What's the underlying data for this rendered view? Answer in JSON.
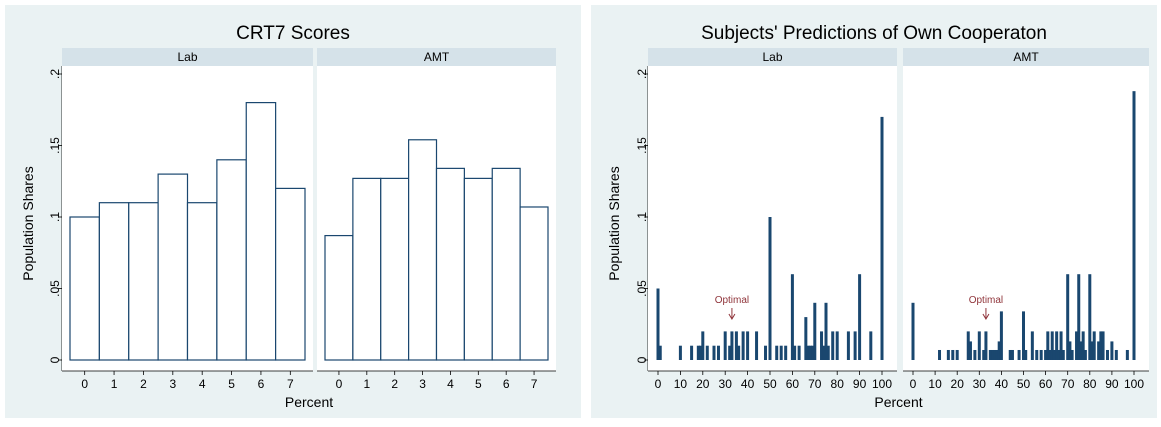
{
  "figures": [
    {
      "title": "CRT7 Scores",
      "ylabel": "Population Shares",
      "xlabel": "Percent",
      "panels": [
        "Lab",
        "AMT"
      ]
    },
    {
      "title": "Subjects' Predictions of Own Cooperaton",
      "ylabel": "Population Shares",
      "xlabel": "Percent",
      "panels": [
        "Lab",
        "AMT"
      ],
      "annotation": "Optimal"
    }
  ],
  "colors": {
    "outer_bg": "#eaf2f3",
    "plot_bg": "#ffffff",
    "strip_bg": "#d5e2e9",
    "bar_outline": "#1a476f",
    "bar_fill_solid": "#1a476f",
    "annotation": "#90353b",
    "text": "#000000"
  },
  "chart_data": [
    {
      "type": "bar",
      "title": "CRT7 Scores",
      "xlabel": "Percent",
      "ylabel": "Population Shares",
      "ylim": [
        0,
        0.2
      ],
      "yticks": [
        0,
        0.05,
        0.1,
        0.15,
        0.2
      ],
      "ytick_labels": [
        "0",
        ".05",
        ".1",
        ".15",
        ".2"
      ],
      "xticks": [
        0,
        1,
        2,
        3,
        4,
        5,
        6,
        7
      ],
      "xtick_labels": [
        "0",
        "1",
        "2",
        "3",
        "4",
        "5",
        "6",
        "7"
      ],
      "categories": [
        0,
        1,
        2,
        3,
        4,
        5,
        6,
        7
      ],
      "series": [
        {
          "name": "Lab",
          "values": [
            0.1,
            0.11,
            0.11,
            0.13,
            0.11,
            0.14,
            0.18,
            0.12
          ]
        },
        {
          "name": "AMT",
          "values": [
            0.087,
            0.127,
            0.127,
            0.154,
            0.134,
            0.127,
            0.134,
            0.107
          ]
        }
      ],
      "grid": false,
      "legend": "none"
    },
    {
      "type": "bar",
      "title": "Subjects' Predictions of Own Cooperaton",
      "xlabel": "Percent",
      "ylabel": "Population Shares",
      "ylim": [
        0,
        0.2
      ],
      "yticks": [
        0,
        0.05,
        0.1,
        0.15,
        0.2
      ],
      "ytick_labels": [
        "0",
        ".05",
        ".1",
        ".15",
        ".2"
      ],
      "xticks": [
        0,
        10,
        20,
        30,
        40,
        50,
        60,
        70,
        80,
        90,
        100
      ],
      "xtick_labels": [
        "0",
        "10",
        "20",
        "30",
        "40",
        "50",
        "60",
        "70",
        "80",
        "90",
        "100"
      ],
      "annotation": {
        "text": "Optimal",
        "x": 33
      },
      "series": [
        {
          "name": "Lab",
          "points": [
            [
              0,
              0.05
            ],
            [
              1,
              0.01
            ],
            [
              10,
              0.01
            ],
            [
              15,
              0.01
            ],
            [
              18,
              0.01
            ],
            [
              19,
              0.01
            ],
            [
              20,
              0.02
            ],
            [
              22,
              0.01
            ],
            [
              25,
              0.01
            ],
            [
              27,
              0.01
            ],
            [
              30,
              0.02
            ],
            [
              32,
              0.01
            ],
            [
              33,
              0.02
            ],
            [
              35,
              0.02
            ],
            [
              36,
              0.01
            ],
            [
              38,
              0.02
            ],
            [
              40,
              0.02
            ],
            [
              44,
              0.02
            ],
            [
              48,
              0.01
            ],
            [
              50,
              0.1
            ],
            [
              53,
              0.01
            ],
            [
              55,
              0.01
            ],
            [
              57,
              0.01
            ],
            [
              60,
              0.06
            ],
            [
              61,
              0.01
            ],
            [
              63,
              0.01
            ],
            [
              66,
              0.03
            ],
            [
              67,
              0.01
            ],
            [
              68,
              0.01
            ],
            [
              69,
              0.01
            ],
            [
              70,
              0.04
            ],
            [
              73,
              0.02
            ],
            [
              74,
              0.01
            ],
            [
              75,
              0.04
            ],
            [
              76,
              0.01
            ],
            [
              78,
              0.02
            ],
            [
              80,
              0.02
            ],
            [
              85,
              0.02
            ],
            [
              88,
              0.02
            ],
            [
              90,
              0.06
            ],
            [
              95,
              0.02
            ],
            [
              100,
              0.17
            ]
          ]
        },
        {
          "name": "AMT",
          "points": [
            [
              0,
              0.04
            ],
            [
              12,
              0.007
            ],
            [
              16,
              0.007
            ],
            [
              18,
              0.007
            ],
            [
              20,
              0.007
            ],
            [
              25,
              0.02
            ],
            [
              26,
              0.013
            ],
            [
              28,
              0.007
            ],
            [
              30,
              0.02
            ],
            [
              32,
              0.007
            ],
            [
              33,
              0.02
            ],
            [
              35,
              0.007
            ],
            [
              36,
              0.007
            ],
            [
              37,
              0.007
            ],
            [
              38,
              0.007
            ],
            [
              39,
              0.013
            ],
            [
              40,
              0.034
            ],
            [
              44,
              0.007
            ],
            [
              45,
              0.007
            ],
            [
              48,
              0.007
            ],
            [
              50,
              0.034
            ],
            [
              51,
              0.007
            ],
            [
              54,
              0.02
            ],
            [
              56,
              0.007
            ],
            [
              58,
              0.007
            ],
            [
              60,
              0.007
            ],
            [
              61,
              0.02
            ],
            [
              62,
              0.007
            ],
            [
              63,
              0.02
            ],
            [
              64,
              0.007
            ],
            [
              65,
              0.02
            ],
            [
              66,
              0.007
            ],
            [
              67,
              0.02
            ],
            [
              68,
              0.007
            ],
            [
              70,
              0.06
            ],
            [
              71,
              0.013
            ],
            [
              72,
              0.007
            ],
            [
              74,
              0.02
            ],
            [
              75,
              0.06
            ],
            [
              76,
              0.013
            ],
            [
              77,
              0.02
            ],
            [
              78,
              0.007
            ],
            [
              80,
              0.06
            ],
            [
              81,
              0.013
            ],
            [
              82,
              0.02
            ],
            [
              84,
              0.013
            ],
            [
              85,
              0.02
            ],
            [
              86,
              0.02
            ],
            [
              88,
              0.007
            ],
            [
              90,
              0.013
            ],
            [
              92,
              0.007
            ],
            [
              97,
              0.007
            ],
            [
              100,
              0.188
            ]
          ]
        }
      ],
      "grid": false,
      "legend": "none"
    }
  ]
}
